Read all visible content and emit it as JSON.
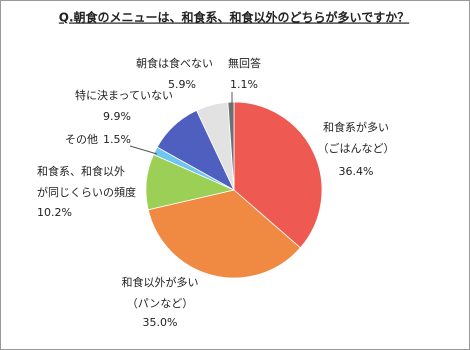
{
  "chart_data": {
    "type": "pie",
    "title": "Q.朝食のメニューは、和食系、和食以外のどちらが多いですか？",
    "categories": [
      "和食系が多い\n（ごはんなど）",
      "和食以外が多い\n（パンなど）",
      "和食系、和食以外\nが同じくらいの頻度",
      "その他",
      "特に決まっていない",
      "朝食は食べない",
      "無回答"
    ],
    "values": [
      36.4,
      35.0,
      10.2,
      1.5,
      9.9,
      5.9,
      1.1
    ],
    "value_labels": [
      "36.4%",
      "35.0%",
      "10.2%",
      "1.5%",
      "9.9%",
      "5.9%",
      "1.1%"
    ],
    "colors": [
      "#ee5a52",
      "#f08a42",
      "#9ccf55",
      "#6cc6ee",
      "#4f5fbf",
      "#e2e2e2",
      "#6f6f6f"
    ]
  }
}
